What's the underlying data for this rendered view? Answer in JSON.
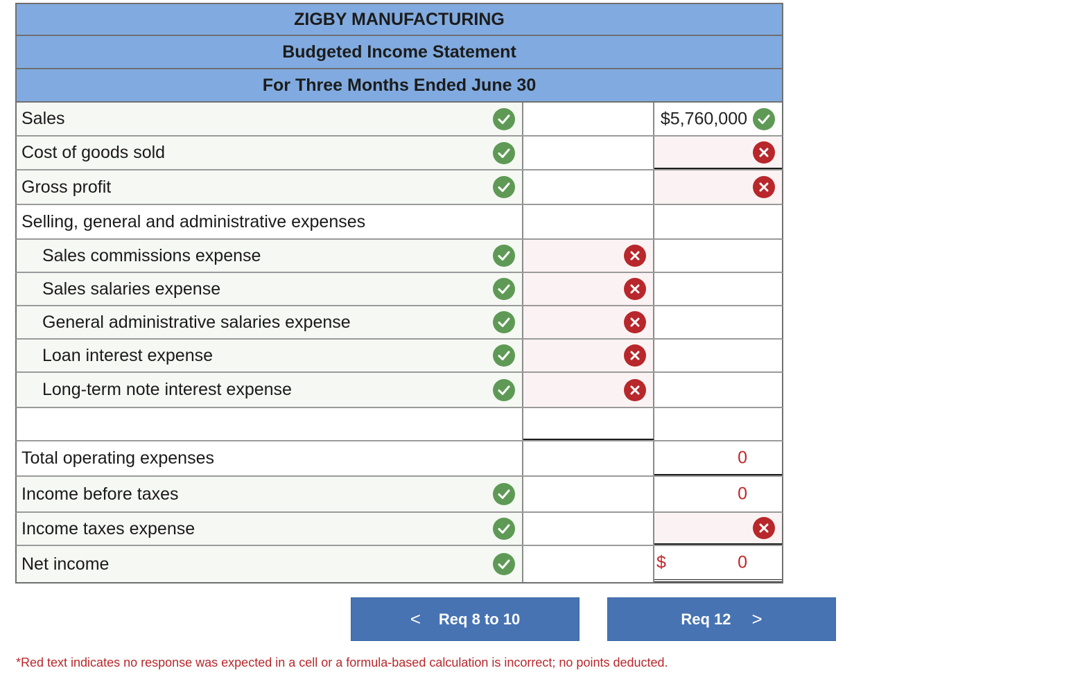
{
  "header": {
    "company": "ZIGBY MANUFACTURING",
    "statement": "Budgeted Income Statement",
    "period": "For Three Months Ended June 30"
  },
  "rows": {
    "sales": {
      "label": "Sales",
      "amount": "$5,760,000"
    },
    "cogs": {
      "label": "Cost of goods sold"
    },
    "gross_profit": {
      "label": "Gross profit"
    },
    "sga": {
      "label": "Selling, general and administrative expenses"
    },
    "sales_commissions": {
      "label": "Sales commissions expense"
    },
    "sales_salaries": {
      "label": "Sales salaries expense"
    },
    "admin_salaries": {
      "label": "General administrative salaries expense"
    },
    "loan_interest": {
      "label": "Loan interest expense"
    },
    "note_interest": {
      "label": "Long-term note interest expense"
    },
    "total_opex": {
      "label": "Total operating expenses",
      "amount": "0"
    },
    "income_before_taxes": {
      "label": "Income before taxes",
      "amount": "0"
    },
    "income_taxes": {
      "label": "Income taxes expense"
    },
    "net_income": {
      "label": "Net income",
      "currency": "$",
      "amount": "0"
    }
  },
  "icons": {
    "correct": "check-circle-icon",
    "incorrect": "x-circle-icon",
    "correct_color": "#5e9a55",
    "incorrect_color": "#b8272b"
  },
  "nav": {
    "prev_label": "Req 8 to 10",
    "prev_chevron": "<",
    "next_label": "Req 12",
    "next_chevron": ">"
  },
  "footnote": "*Red text indicates no response was expected in a cell or a formula-based calculation is incorrect; no points deducted."
}
